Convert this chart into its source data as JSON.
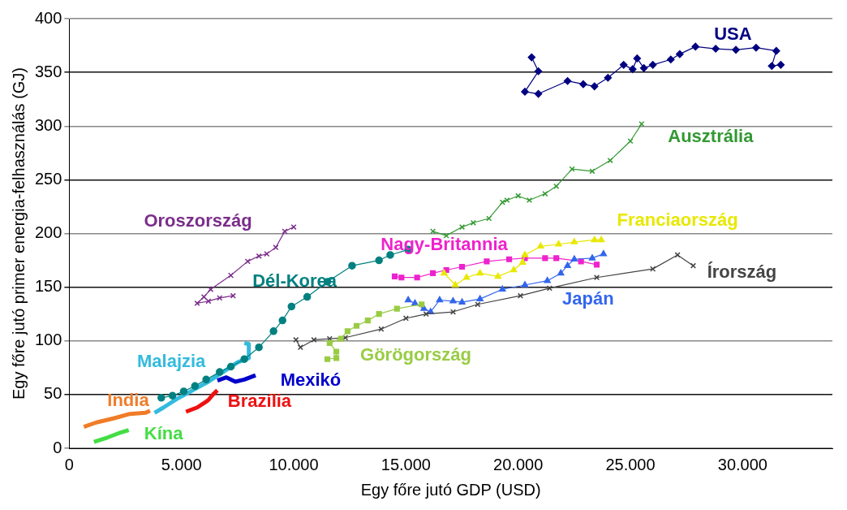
{
  "chart_data": {
    "type": "line",
    "xlabel": "Egy főre jutó GDP (USD)",
    "ylabel": "Egy főre jutó primer energia-felhasználás (GJ)",
    "xlim": [
      0,
      34000
    ],
    "xticks": [
      0,
      {
        "value": 5000,
        "label": "5.000"
      },
      {
        "value": 10000,
        "label": "10.000"
      },
      {
        "value": 15000,
        "label": "15.000"
      },
      {
        "value": 20000,
        "label": "20.000"
      },
      {
        "value": 25000,
        "label": "25.000"
      },
      {
        "value": 30000,
        "label": "30.000"
      }
    ],
    "ylim": [
      0,
      400
    ],
    "yticks": [
      0,
      50,
      100,
      150,
      200,
      250,
      300,
      350,
      400
    ],
    "grid": "y",
    "legend": false,
    "series": [
      {
        "name": "USA",
        "color": "#000080",
        "marker": "diamond",
        "x": [
          20600,
          20900,
          20300,
          20900,
          22200,
          22900,
          23400,
          24000,
          24700,
          25100,
          25300,
          25600,
          26000,
          26800,
          27200,
          27900,
          28800,
          29700,
          30600,
          31500,
          31300,
          31700
        ],
        "values": [
          364,
          351,
          332,
          330,
          342,
          339,
          337,
          345,
          357,
          353,
          363,
          354,
          357,
          362,
          367,
          374,
          372,
          371,
          373,
          370,
          356,
          357
        ]
      },
      {
        "name": "Ausztrália",
        "color": "#339933",
        "marker": "cross",
        "x": [
          16200,
          16800,
          17500,
          18000,
          18700,
          19300,
          19500,
          20000,
          20500,
          21200,
          21700,
          22400,
          23300,
          24100,
          25000,
          25500
        ],
        "values": [
          202,
          198,
          206,
          210,
          214,
          229,
          231,
          235,
          231,
          237,
          244,
          260,
          258,
          268,
          286,
          302
        ]
      },
      {
        "name": "Oroszország",
        "color": "#7b2d8b",
        "marker": "cross",
        "x": [
          10000,
          9600,
          9200,
          8800,
          8450,
          7950,
          7200,
          6300,
          6000,
          5700,
          6200,
          6700,
          7300
        ],
        "values": [
          206,
          202,
          187,
          181,
          179,
          174,
          161,
          148,
          141,
          135,
          137,
          140,
          142
        ]
      },
      {
        "name": "Dél-Korea",
        "color": "#008080",
        "marker": "circle",
        "x": [
          4100,
          4600,
          5100,
          5600,
          6100,
          6700,
          7200,
          7800,
          8450,
          9100,
          9500,
          9900,
          10600,
          11500,
          12600,
          13800,
          14300,
          15100
        ],
        "values": [
          47,
          49,
          53,
          58,
          64,
          71,
          76,
          83,
          94,
          109,
          119,
          132,
          141,
          155,
          170,
          175,
          180,
          185
        ]
      },
      {
        "name": "Malajzia",
        "color": "#33bbdd",
        "marker": "none",
        "x": [
          3800,
          4200,
          4800,
          5500,
          6200,
          7000,
          7500,
          8000,
          8000,
          7800
        ],
        "values": [
          33,
          38,
          46,
          54,
          62,
          73,
          80,
          84,
          97,
          98
        ]
      },
      {
        "name": "Mexikó",
        "color": "#0000cc",
        "marker": "none",
        "x": [
          6600,
          7000,
          7400,
          7800,
          8300
        ],
        "values": [
          63,
          66,
          62,
          64,
          68
        ]
      },
      {
        "name": "India",
        "color": "#f07c28",
        "marker": "none",
        "x": [
          650,
          1200,
          2000,
          2700,
          3400,
          3600
        ],
        "values": [
          20,
          24,
          28,
          32,
          33,
          35
        ]
      },
      {
        "name": "Kína",
        "color": "#44dd44",
        "marker": "none",
        "x": [
          1100,
          1700,
          2200,
          2650
        ],
        "values": [
          6,
          10,
          14,
          17
        ]
      },
      {
        "name": "Brazília",
        "color": "#ee1111",
        "marker": "none",
        "x": [
          5200,
          5700,
          6000,
          6200,
          6400,
          6600
        ],
        "values": [
          34,
          38,
          42,
          45,
          50,
          54
        ]
      },
      {
        "name": "Görögország",
        "color": "#99cc44",
        "marker": "square",
        "x": [
          11500,
          11900,
          11900,
          11600,
          12100,
          12400,
          12800,
          13300,
          13800,
          14600,
          15700
        ],
        "values": [
          83,
          84,
          90,
          98,
          102,
          109,
          114,
          119,
          125,
          130,
          134
        ]
      },
      {
        "name": "Írország",
        "color": "#444444",
        "marker": "cross",
        "x": [
          10100,
          10300,
          10900,
          11600,
          12300,
          13900,
          15000,
          15900,
          17100,
          18200,
          20100,
          21400,
          23500,
          26000,
          27100,
          27800
        ],
        "values": [
          101,
          94,
          101,
          102,
          103,
          111,
          121,
          125,
          127,
          134,
          142,
          149,
          159,
          167,
          180,
          170
        ]
      },
      {
        "name": "Japán",
        "color": "#3366ee",
        "marker": "triangle",
        "x": [
          15100,
          15400,
          15800,
          16100,
          16500,
          17100,
          17500,
          18300,
          19300,
          20300,
          21300,
          21900,
          22200,
          22500,
          23300,
          23800
        ],
        "values": [
          138,
          135,
          130,
          127,
          138,
          137,
          136,
          139,
          148,
          152,
          156,
          163,
          170,
          176,
          177,
          181
        ]
      },
      {
        "name": "Franciaország",
        "color": "#e8e800",
        "marker": "triangle",
        "x": [
          16700,
          17200,
          17700,
          18300,
          19100,
          19800,
          20200,
          20300,
          21000,
          21800,
          22500,
          23400,
          23700
        ],
        "values": [
          163,
          152,
          159,
          163,
          160,
          166,
          173,
          180,
          188,
          190,
          192,
          194,
          194
        ]
      },
      {
        "name": "Nagy-Britannia",
        "color": "#ee22cc",
        "marker": "square",
        "x": [
          14500,
          14800,
          15500,
          16200,
          16800,
          17500,
          18600,
          19600,
          20300,
          21200,
          21700,
          22800,
          23500
        ],
        "values": [
          160,
          159,
          159,
          163,
          166,
          169,
          174,
          176,
          177,
          177,
          177,
          174,
          171
        ]
      }
    ]
  }
}
